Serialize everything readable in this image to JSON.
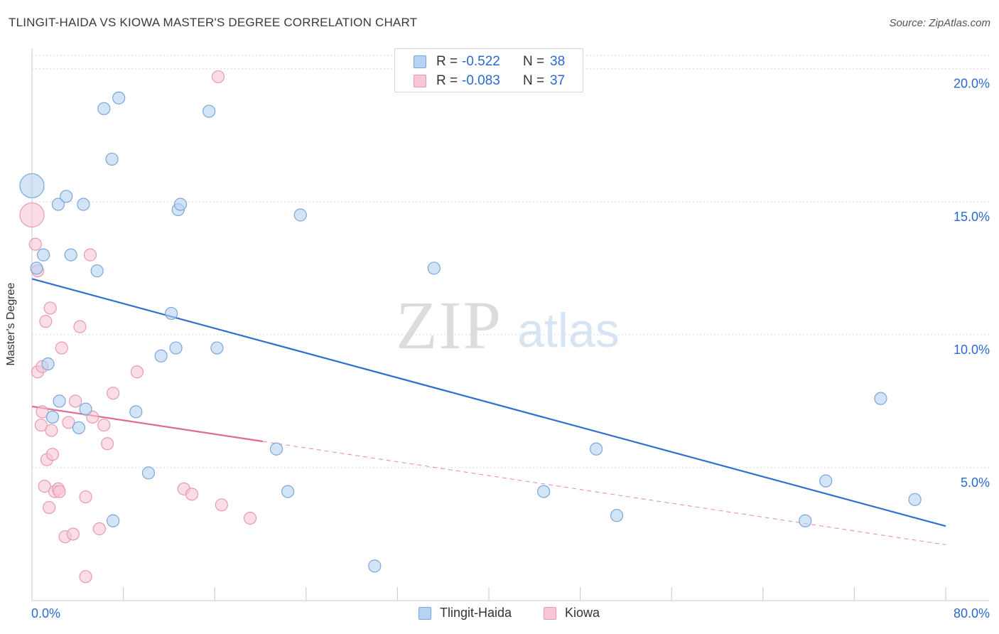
{
  "header": {
    "title": "TLINGIT-HAIDA VS KIOWA MASTER'S DEGREE CORRELATION CHART",
    "source": "Source: ZipAtlas.com"
  },
  "watermark": {
    "zip": "ZIP",
    "atlas": "atlas"
  },
  "legend_top": {
    "rows": [
      {
        "r_label": "R =",
        "r_value": "-0.522",
        "n_label": "N =",
        "n_value": "38"
      },
      {
        "r_label": "R =",
        "r_value": "-0.083",
        "n_label": "N =",
        "n_value": "37"
      }
    ]
  },
  "bottom_legend": {
    "series1": "Tlingit-Haida",
    "series2": "Kiowa"
  },
  "colors": {
    "blue_fill": "#b8d2f2",
    "blue_stroke": "#7aa6dc",
    "blue_line": "#2f6fce",
    "pink_fill": "#f9c6d5",
    "pink_stroke": "#e89ab2",
    "pink_line": "#e26a92",
    "value_text": "#2a6ad0",
    "grid": "#d9d9d9"
  },
  "chart_data": {
    "type": "scatter",
    "title": "TLINGIT-HAIDA VS KIOWA MASTER'S DEGREE CORRELATION CHART",
    "xlabel": "",
    "ylabel": "Master's Degree",
    "xlim": [
      0,
      80
    ],
    "ylim": [
      0,
      20.5
    ],
    "x_tick_labels": [
      {
        "value": 0,
        "label": "0.0%"
      },
      {
        "value": 80,
        "label": "80.0%"
      }
    ],
    "x_minor_ticks": [
      0,
      8,
      16,
      24,
      32,
      40,
      48,
      56,
      64,
      72,
      80
    ],
    "y_ticks": [
      {
        "value": 5,
        "label": "5.0%"
      },
      {
        "value": 10,
        "label": "10.0%"
      },
      {
        "value": 15,
        "label": "15.0%"
      },
      {
        "value": 20,
        "label": "20.0%"
      }
    ],
    "series": [
      {
        "name": "Tlingit-Haida",
        "color": "blue",
        "r": -0.522,
        "n": 38,
        "trend": {
          "x0": 0,
          "y0": 12.1,
          "x1": 80,
          "y1": 2.8,
          "solid_until": 80
        },
        "points": [
          [
            0.0,
            15.6,
            "large"
          ],
          [
            0.4,
            12.5
          ],
          [
            1.0,
            13.0
          ],
          [
            1.4,
            8.9
          ],
          [
            1.8,
            6.9
          ],
          [
            2.3,
            14.9
          ],
          [
            2.4,
            7.5
          ],
          [
            3.0,
            15.2
          ],
          [
            3.4,
            13.0
          ],
          [
            4.1,
            6.5
          ],
          [
            4.5,
            14.9
          ],
          [
            4.7,
            7.2
          ],
          [
            5.7,
            12.4
          ],
          [
            6.3,
            18.5
          ],
          [
            7.0,
            16.6
          ],
          [
            7.1,
            3.0
          ],
          [
            7.6,
            18.9
          ],
          [
            9.1,
            7.1
          ],
          [
            10.2,
            4.8
          ],
          [
            11.3,
            9.2
          ],
          [
            12.2,
            10.8
          ],
          [
            12.8,
            14.7
          ],
          [
            13.0,
            14.9
          ],
          [
            12.6,
            9.5
          ],
          [
            15.5,
            18.4
          ],
          [
            16.2,
            9.5
          ],
          [
            21.4,
            5.7
          ],
          [
            22.4,
            4.1
          ],
          [
            23.5,
            14.5
          ],
          [
            30.0,
            1.3
          ],
          [
            35.2,
            12.5
          ],
          [
            44.8,
            4.1
          ],
          [
            49.4,
            5.7
          ],
          [
            51.2,
            3.2
          ],
          [
            67.7,
            3.0
          ],
          [
            69.5,
            4.5
          ],
          [
            74.3,
            7.6
          ],
          [
            77.3,
            3.8
          ]
        ]
      },
      {
        "name": "Kiowa",
        "color": "pink",
        "r": -0.083,
        "n": 37,
        "trend": {
          "x0": 0,
          "y0": 7.3,
          "x1": 80,
          "y1": 2.1,
          "solid_until": 20.2
        },
        "points": [
          [
            0.0,
            14.5,
            "large"
          ],
          [
            0.3,
            13.4
          ],
          [
            0.5,
            12.4
          ],
          [
            0.5,
            8.6
          ],
          [
            0.8,
            6.6
          ],
          [
            0.9,
            7.1
          ],
          [
            0.9,
            8.8
          ],
          [
            1.1,
            4.3
          ],
          [
            1.2,
            10.5
          ],
          [
            1.3,
            5.3
          ],
          [
            1.5,
            3.5
          ],
          [
            1.6,
            11.0
          ],
          [
            1.7,
            6.4
          ],
          [
            1.8,
            5.5
          ],
          [
            2.0,
            4.1
          ],
          [
            2.3,
            4.2
          ],
          [
            2.4,
            4.1
          ],
          [
            2.6,
            9.5
          ],
          [
            2.9,
            2.4
          ],
          [
            3.2,
            6.7
          ],
          [
            3.6,
            2.5
          ],
          [
            3.8,
            7.5
          ],
          [
            4.2,
            10.3
          ],
          [
            4.7,
            3.9
          ],
          [
            4.7,
            0.9
          ],
          [
            5.1,
            13.0
          ],
          [
            5.3,
            6.9
          ],
          [
            5.9,
            2.7
          ],
          [
            6.3,
            6.6
          ],
          [
            6.6,
            5.9
          ],
          [
            7.1,
            7.8
          ],
          [
            9.2,
            8.6
          ],
          [
            13.3,
            4.2
          ],
          [
            14.0,
            4.0
          ],
          [
            16.6,
            3.6
          ],
          [
            19.1,
            3.1
          ],
          [
            16.3,
            19.7
          ]
        ]
      }
    ]
  }
}
